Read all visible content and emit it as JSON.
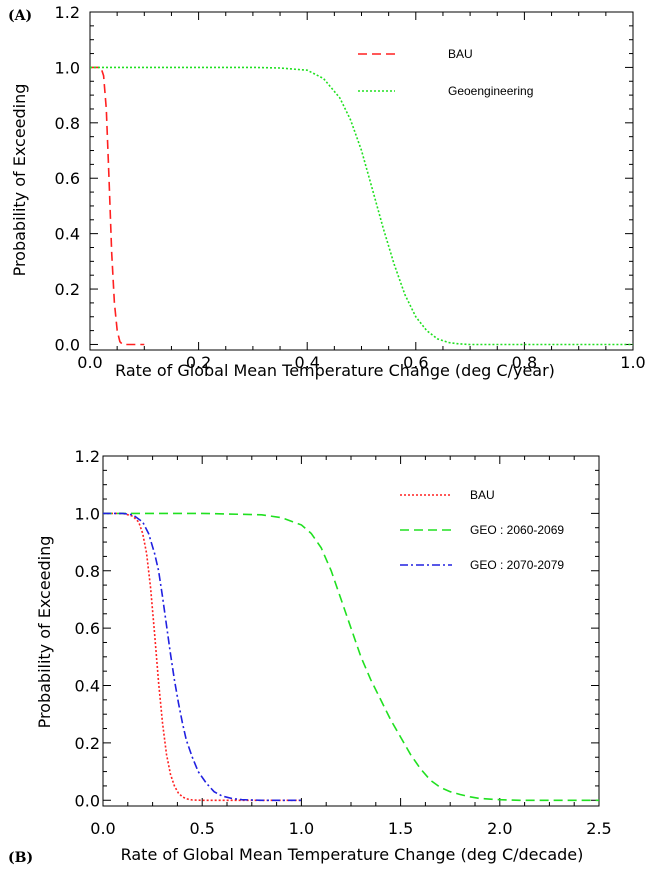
{
  "chart_data": [
    {
      "panel_label": "(A)",
      "type": "line",
      "xlabel": "Rate of Global Mean Temperature Change (deg C/year)",
      "ylabel": "Probability of Exceeding",
      "xlim": [
        0.0,
        1.0
      ],
      "ylim": [
        -0.02,
        1.2
      ],
      "xticks": [
        "0.0",
        "0.2",
        "0.4",
        "0.6",
        "0.8",
        "1.0"
      ],
      "yticks": [
        "0.0",
        "0.2",
        "0.4",
        "0.6",
        "0.8",
        "1.0",
        "1.2"
      ],
      "grid": false,
      "legend": "top-right",
      "series": [
        {
          "name": "BAU",
          "color": "#ff2020",
          "dash": "dashed",
          "x": [
            0.0,
            0.02,
            0.025,
            0.03,
            0.035,
            0.04,
            0.045,
            0.05,
            0.055,
            0.06,
            0.07,
            0.08,
            0.09,
            0.1
          ],
          "y": [
            1.0,
            1.0,
            0.97,
            0.85,
            0.6,
            0.33,
            0.15,
            0.05,
            0.01,
            0.0,
            0.0,
            0.0,
            0.0,
            0.0
          ]
        },
        {
          "name": "Geoengineering",
          "color": "#20e020",
          "dash": "dotted",
          "x": [
            0.0,
            0.1,
            0.2,
            0.3,
            0.35,
            0.4,
            0.43,
            0.46,
            0.48,
            0.5,
            0.52,
            0.54,
            0.56,
            0.58,
            0.6,
            0.62,
            0.64,
            0.66,
            0.68,
            0.7,
            0.8,
            0.9,
            1.0
          ],
          "y": [
            1.0,
            1.0,
            1.0,
            1.0,
            0.998,
            0.99,
            0.96,
            0.89,
            0.81,
            0.7,
            0.56,
            0.42,
            0.29,
            0.18,
            0.1,
            0.05,
            0.02,
            0.007,
            0.002,
            0.0,
            0.0,
            0.0,
            0.0
          ]
        }
      ]
    },
    {
      "panel_label": "(B)",
      "type": "line",
      "xlabel": "Rate of Global Mean Temperature Change (deg C/decade)",
      "ylabel": "Probability of Exceeding",
      "xlim": [
        0.0,
        2.5
      ],
      "ylim": [
        -0.02,
        1.2
      ],
      "xticks": [
        "0.0",
        "0.5",
        "1.0",
        "1.5",
        "2.0",
        "2.5"
      ],
      "yticks": [
        "0.0",
        "0.2",
        "0.4",
        "0.6",
        "0.8",
        "1.0",
        "1.2"
      ],
      "grid": false,
      "legend": "top-right",
      "series": [
        {
          "name": "BAU",
          "color": "#ff2020",
          "dash": "dotted",
          "x": [
            0.0,
            0.1,
            0.15,
            0.18,
            0.2,
            0.22,
            0.24,
            0.26,
            0.28,
            0.3,
            0.32,
            0.34,
            0.36,
            0.38,
            0.4,
            0.42,
            0.45,
            0.5,
            1.0
          ],
          "y": [
            1.0,
            1.0,
            0.99,
            0.97,
            0.93,
            0.86,
            0.74,
            0.58,
            0.41,
            0.27,
            0.16,
            0.09,
            0.05,
            0.025,
            0.012,
            0.005,
            0.001,
            0.0,
            0.0
          ]
        },
        {
          "name": "GEO : 2060-2069",
          "color": "#20e020",
          "dash": "dashed",
          "x": [
            0.0,
            0.5,
            0.8,
            0.9,
            1.0,
            1.05,
            1.1,
            1.15,
            1.2,
            1.25,
            1.3,
            1.35,
            1.4,
            1.45,
            1.5,
            1.55,
            1.6,
            1.65,
            1.7,
            1.75,
            1.8,
            1.85,
            1.9,
            2.0,
            2.1,
            2.5
          ],
          "y": [
            1.0,
            1.0,
            0.995,
            0.985,
            0.96,
            0.93,
            0.88,
            0.8,
            0.7,
            0.6,
            0.5,
            0.42,
            0.35,
            0.28,
            0.22,
            0.16,
            0.11,
            0.07,
            0.045,
            0.03,
            0.02,
            0.012,
            0.006,
            0.002,
            0.0,
            0.0
          ]
        },
        {
          "name": "GEO : 2070-2079",
          "color": "#2020e0",
          "dash": "dashdot",
          "x": [
            0.0,
            0.1,
            0.15,
            0.2,
            0.23,
            0.26,
            0.28,
            0.3,
            0.32,
            0.34,
            0.36,
            0.38,
            0.4,
            0.42,
            0.45,
            0.48,
            0.52,
            0.56,
            0.6,
            0.65,
            0.7,
            0.8,
            1.0
          ],
          "y": [
            1.0,
            1.0,
            0.995,
            0.97,
            0.93,
            0.86,
            0.8,
            0.71,
            0.61,
            0.51,
            0.42,
            0.34,
            0.27,
            0.21,
            0.15,
            0.1,
            0.06,
            0.03,
            0.015,
            0.006,
            0.002,
            0.0,
            0.0
          ]
        }
      ]
    }
  ]
}
